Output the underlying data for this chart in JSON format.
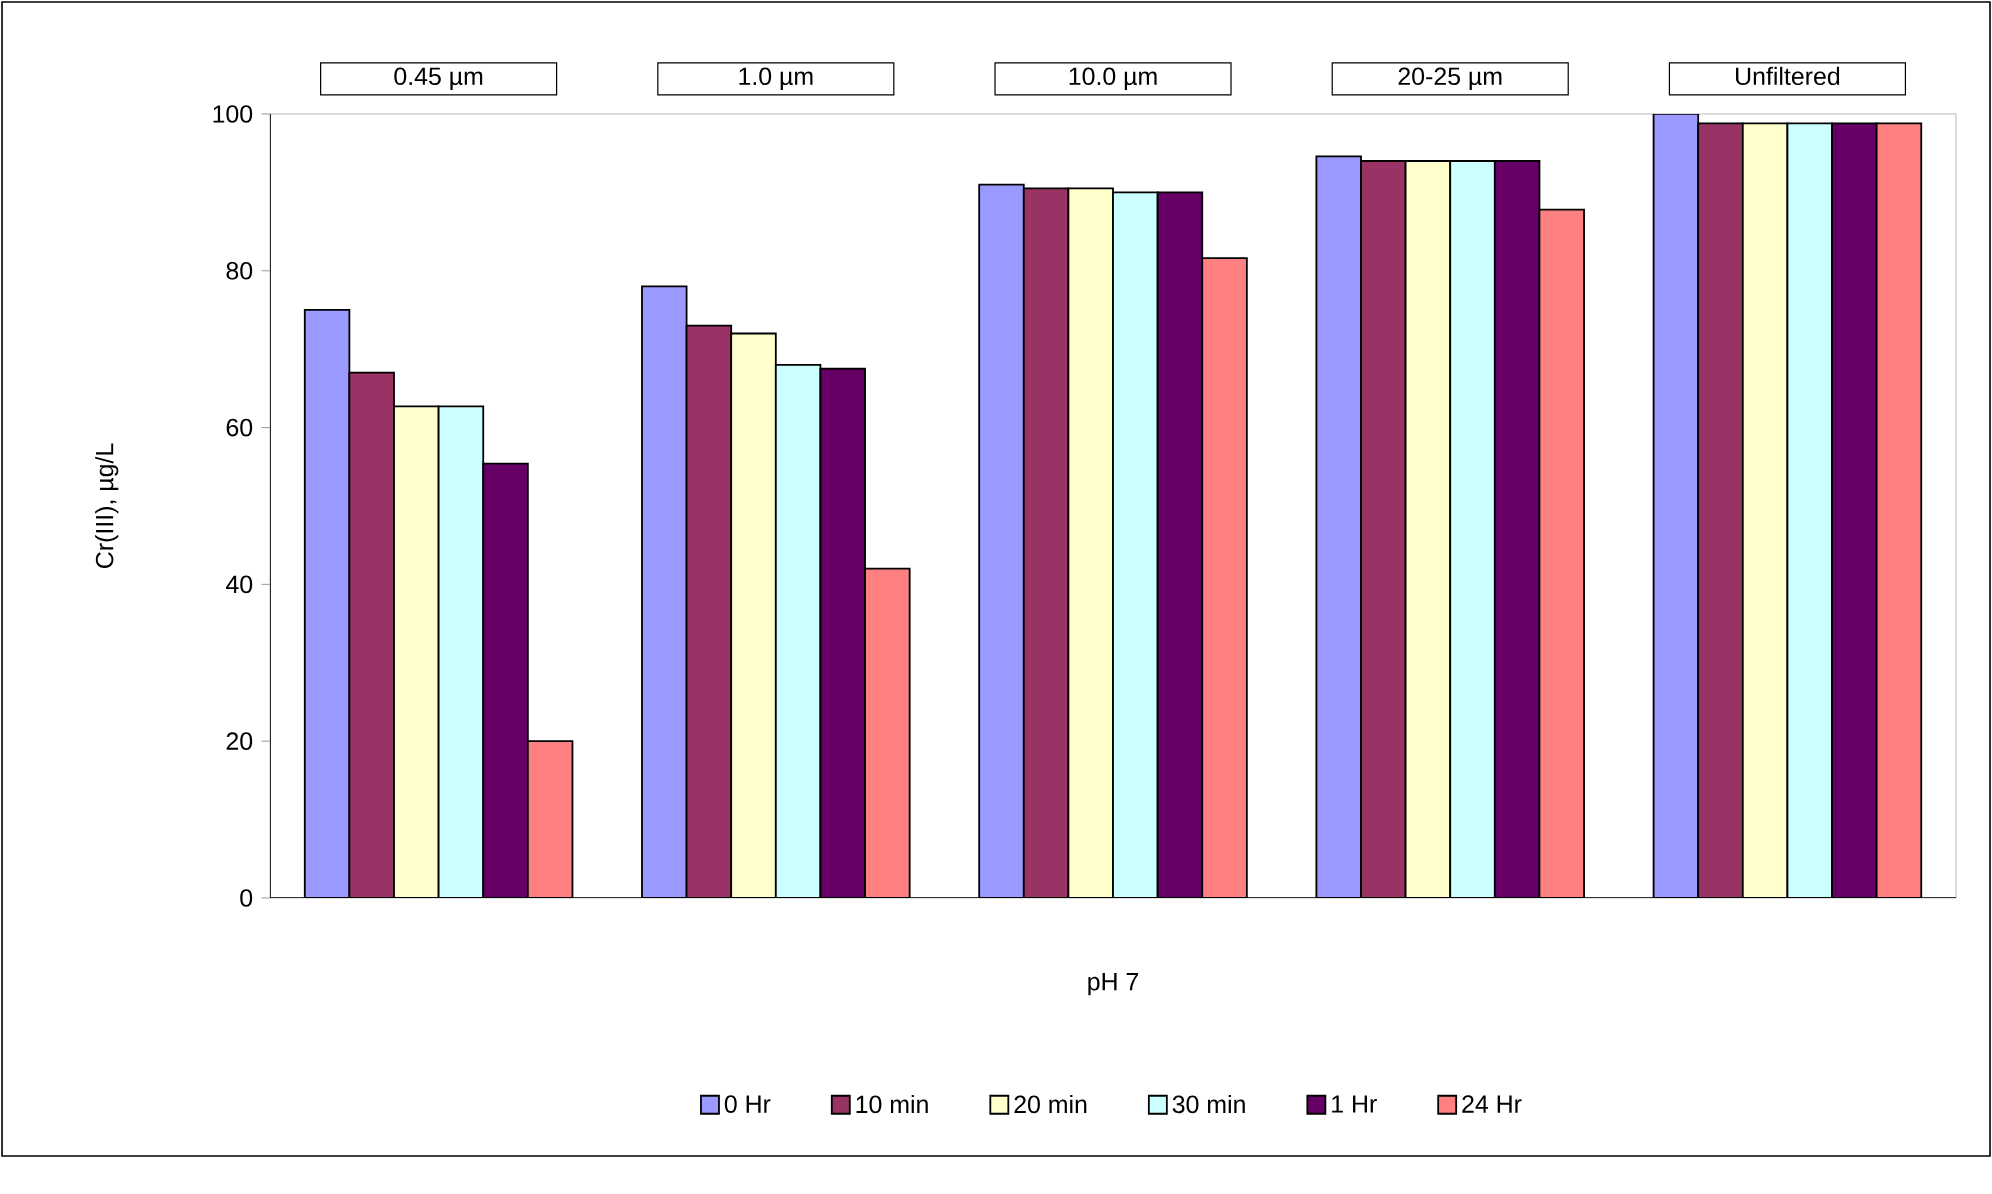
{
  "chart_data": {
    "type": "bar",
    "xlabel": "pH 7",
    "ylabel": "Cr(III), µg/L",
    "categories": [
      "0.45 µm",
      "1.0  µm",
      "10.0 µm",
      "20-25 µm",
      "Unfiltered"
    ],
    "series": [
      {
        "name": "0 Hr",
        "color": "#9999ff",
        "values": [
          75,
          78,
          91,
          94.6,
          100
        ]
      },
      {
        "name": "10 min",
        "color": "#993366",
        "values": [
          67,
          73,
          90.5,
          94,
          98.8
        ]
      },
      {
        "name": "20 min",
        "color": "#ffffcc",
        "values": [
          62.7,
          72,
          90.5,
          94,
          98.8
        ]
      },
      {
        "name": "30 min",
        "color": "#ccffff",
        "values": [
          62.7,
          68,
          90,
          94,
          98.8
        ]
      },
      {
        "name": "1 Hr",
        "color": "#660066",
        "values": [
          55.4,
          67.5,
          90,
          94,
          98.8
        ]
      },
      {
        "name": "24 Hr",
        "color": "#ff8080",
        "values": [
          20,
          42,
          81.6,
          87.8,
          98.8
        ]
      }
    ],
    "ylim": [
      0,
      100
    ],
    "yticks": [
      0,
      20,
      40,
      60,
      80,
      100
    ],
    "grid": false,
    "legend": "bottom"
  }
}
